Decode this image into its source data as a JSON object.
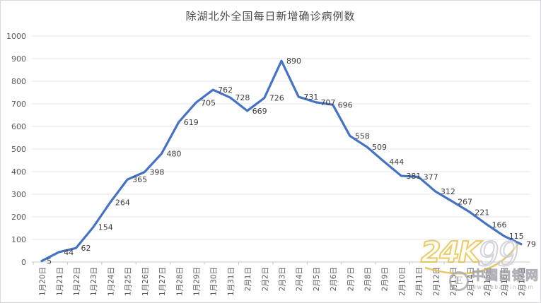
{
  "title": "除湖北外全国每日新增确诊病例数",
  "chart_data": {
    "type": "line",
    "title": "除湖北外全国每日新增确诊病例数",
    "categories": [
      "1月20日",
      "1月21日",
      "1月22日",
      "1月23日",
      "1月24日",
      "1月25日",
      "1月26日",
      "1月27日",
      "1月28日",
      "1月29日",
      "1月30日",
      "1月31日",
      "2月1日",
      "2月2日",
      "2月3日",
      "2月4日",
      "2月5日",
      "2月6日",
      "2月7日",
      "2月8日",
      "2月9日",
      "2月10日",
      "2月11日",
      "2月12日",
      "2月13日",
      "2月14日",
      "2月15日",
      "2月16日",
      "2月17日"
    ],
    "values": [
      5,
      44,
      62,
      154,
      264,
      365,
      398,
      480,
      619,
      705,
      762,
      728,
      669,
      726,
      890,
      731,
      707,
      696,
      558,
      509,
      444,
      381,
      377,
      312,
      267,
      221,
      166,
      115,
      79
    ],
    "xlabel": "",
    "ylabel": "",
    "ylim": [
      0,
      1000
    ],
    "ytick_interval": 100,
    "grid": true,
    "legend": "none",
    "line_color": "#4472C4",
    "grid_color": "#e4e4e4",
    "axis_color": "#c9c9c9",
    "axis_text_color": "#595959",
    "data_label_color": "#3d3d3d"
  },
  "watermarks": {
    "gold": {
      "part1": "24K",
      "part2": "99"
    },
    "site": {
      "logo_letter": "E",
      "name": "中国白银网",
      "url": "www.ebaiyin.com"
    }
  }
}
